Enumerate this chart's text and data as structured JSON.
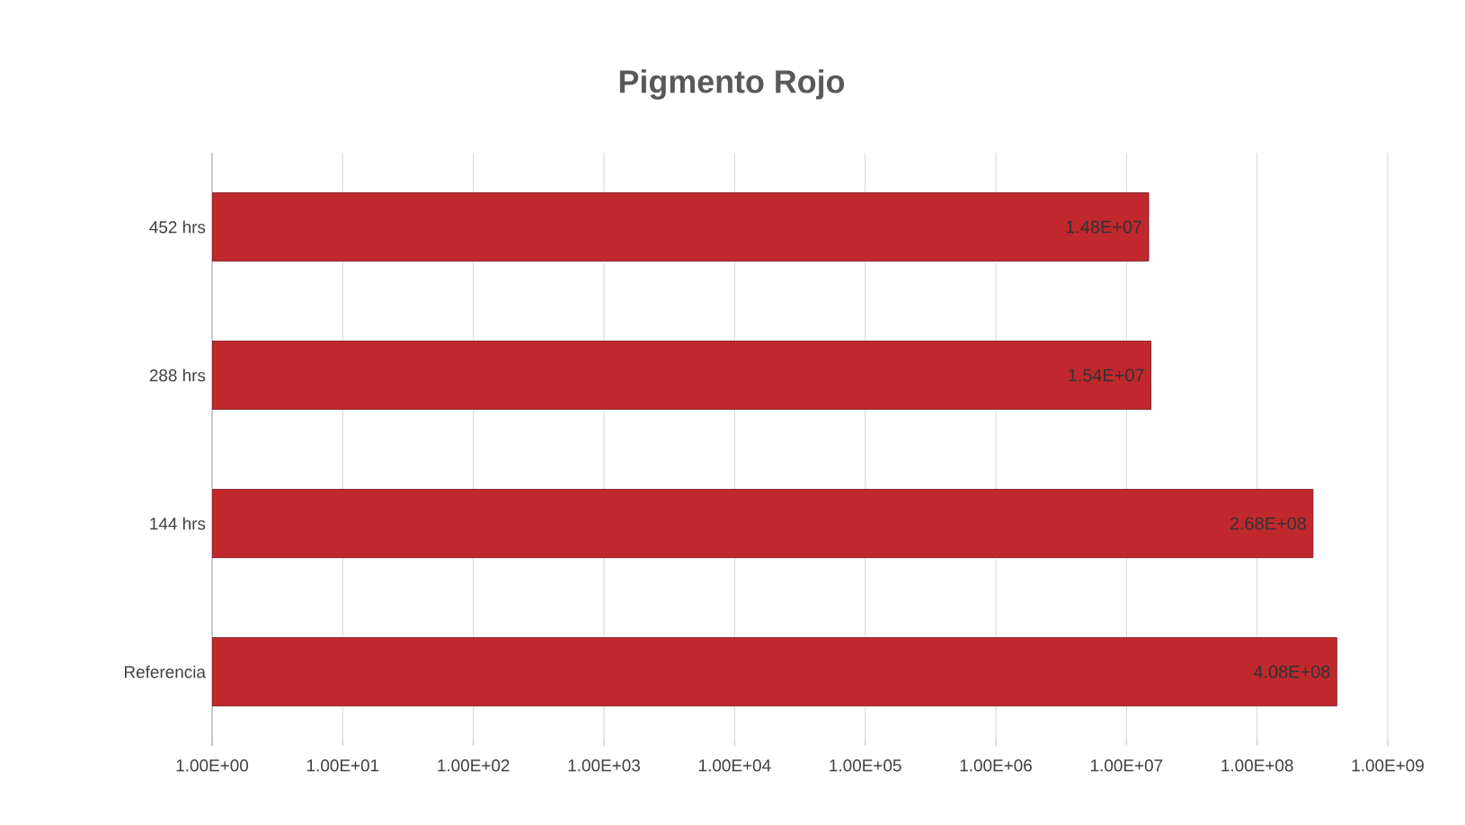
{
  "chart_data": {
    "type": "bar",
    "orientation": "horizontal",
    "title": "Pigmento Rojo",
    "categories": [
      "452 hrs",
      "288 hrs",
      "144 hrs",
      "Referencia"
    ],
    "values": [
      14800000,
      15400000,
      268000000,
      408000000
    ],
    "value_labels": [
      "1.48E+07",
      "1.54E+07",
      "2.68E+08",
      "4.08E+08"
    ],
    "color": "#c0282d",
    "log": "x",
    "grid": "x",
    "xlim": [
      1,
      1000000000
    ],
    "xticks": [
      {
        "value": 1,
        "label": "1.00E+00"
      },
      {
        "value": 10,
        "label": "1.00E+01"
      },
      {
        "value": 100,
        "label": "1.00E+02"
      },
      {
        "value": 1000,
        "label": "1.00E+03"
      },
      {
        "value": 10000,
        "label": "1.00E+04"
      },
      {
        "value": 100000,
        "label": "1.00E+05"
      },
      {
        "value": 1000000,
        "label": "1.00E+06"
      },
      {
        "value": 10000000,
        "label": "1.00E+07"
      },
      {
        "value": 100000000,
        "label": "1.00E+08"
      },
      {
        "value": 1000000000,
        "label": "1.00E+09"
      }
    ]
  }
}
